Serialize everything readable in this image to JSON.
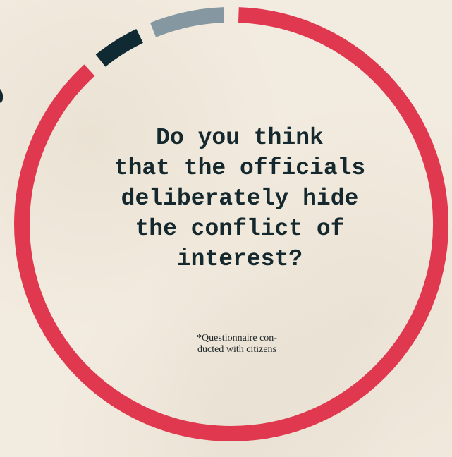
{
  "chart_data": {
    "type": "pie",
    "style": "donut",
    "segments": [
      {
        "share": 87.0,
        "color": "#e0384f"
      },
      {
        "share": 3.5,
        "color": "#0f2a33"
      },
      {
        "share": 5.5,
        "color": "#8597a0"
      }
    ],
    "title": "Do you think that the officials deliberately hide the conflict of interest?",
    "title_lines": [
      "Do you think",
      "that the officials",
      "deliberately hide",
      "the conflict of",
      "interest?"
    ],
    "annotation_lines": [
      "*Questionnaire con-",
      "ducted with citizens"
    ],
    "legend": "none"
  },
  "colors": {
    "background": "#f2ebdf",
    "text": "#14282e",
    "accent": "#e0384f"
  }
}
